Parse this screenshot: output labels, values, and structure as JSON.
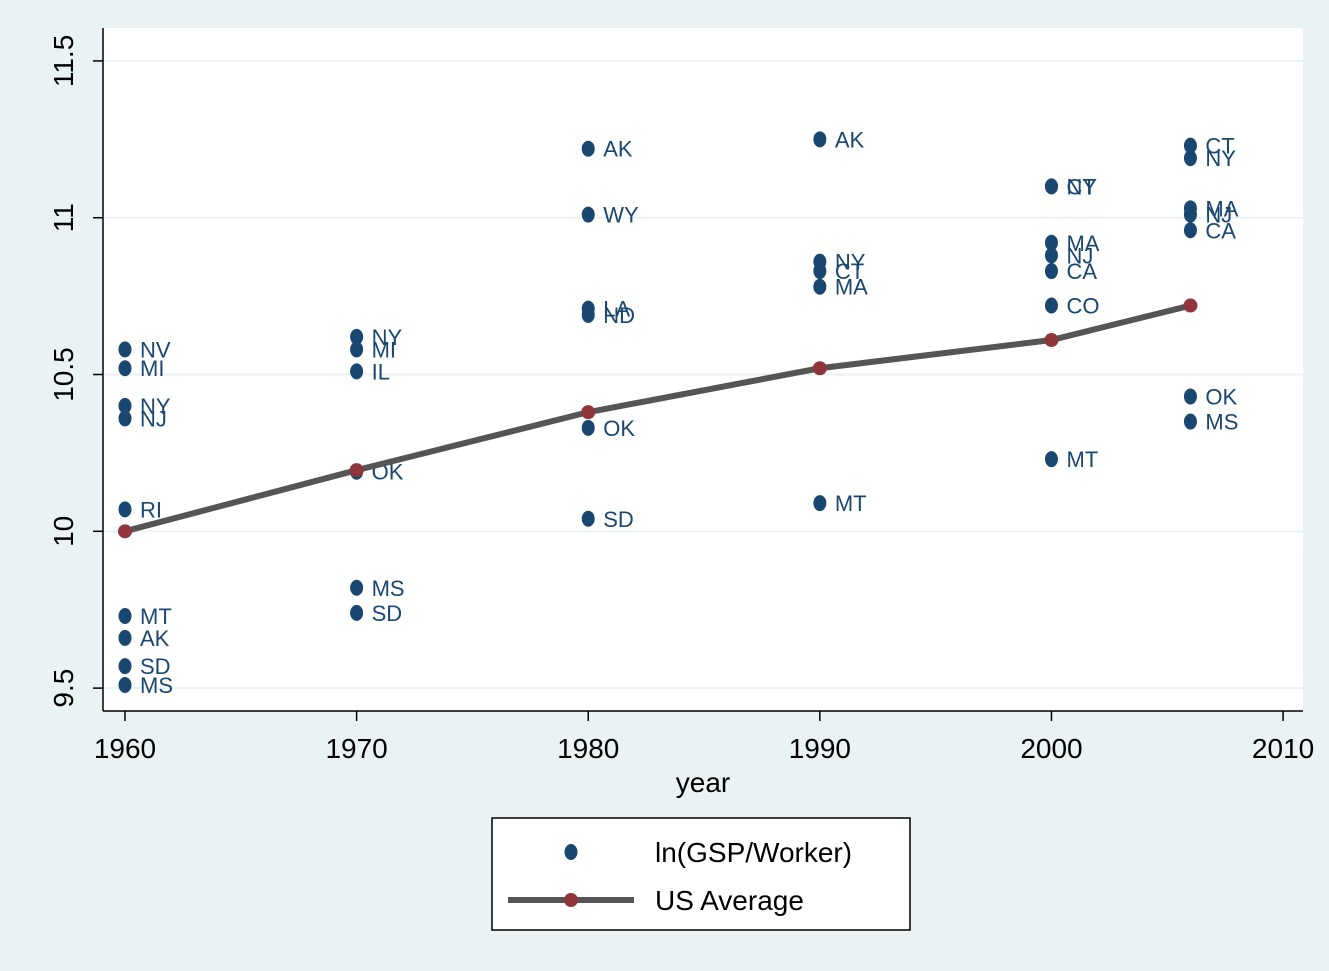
{
  "chart_data": {
    "type": "scatter",
    "x_label": "year",
    "xlim": [
      1959.05,
      2010.86
    ],
    "ylim": [
      9.427,
      11.605
    ],
    "xticks": [
      1960,
      1970,
      1980,
      1990,
      2000,
      2010
    ],
    "yticks": [
      9.5,
      10,
      10.5,
      11,
      11.5
    ],
    "grid": true,
    "legend": "bottom",
    "series": [
      {
        "name": "ln(GSP/Worker)",
        "type": "scatter",
        "color": "#1a476f",
        "x": [
          1960,
          1960,
          1960,
          1960,
          1960,
          1960,
          1960,
          1960,
          1960,
          1970,
          1970,
          1970,
          1970,
          1970,
          1970,
          1980,
          1980,
          1980,
          1980,
          1980,
          1980,
          1990,
          1990,
          1990,
          1990,
          1990,
          2000,
          2000,
          2000,
          2000,
          2000,
          2000,
          2000,
          2006,
          2006,
          2006,
          2006,
          2006,
          2006,
          2006
        ],
        "values": [
          10.58,
          10.52,
          10.4,
          10.36,
          10.07,
          9.73,
          9.66,
          9.57,
          9.51,
          10.62,
          10.58,
          10.51,
          10.19,
          9.82,
          9.74,
          11.22,
          11.01,
          10.71,
          10.69,
          10.33,
          10.04,
          11.25,
          10.86,
          10.83,
          10.78,
          10.09,
          11.1,
          11.1,
          10.92,
          10.88,
          10.83,
          10.72,
          10.23,
          11.23,
          11.19,
          11.03,
          11.01,
          10.96,
          10.43,
          10.35
        ],
        "labels": [
          "NV",
          "MI",
          "NY",
          "NJ",
          "RI",
          "MT",
          "AK",
          "SD",
          "MS",
          "NY",
          "MI",
          "IL",
          "OK",
          "MS",
          "SD",
          "AK",
          "WY",
          "LA",
          "ND",
          "OK",
          "SD",
          "AK",
          "NY",
          "CT",
          "MA",
          "MT",
          "CT",
          "NY",
          "MA",
          "NJ",
          "CA",
          "CO",
          "MT",
          "CT",
          "NY",
          "MA",
          "NJ",
          "CA",
          "OK",
          "MS"
        ]
      },
      {
        "name": "US Average",
        "type": "line",
        "color": "#555555",
        "marker_color": "#90353b",
        "x": [
          1960,
          1970,
          1980,
          1990,
          2000,
          2006
        ],
        "values": [
          10.0,
          10.195,
          10.38,
          10.52,
          10.61,
          10.72
        ]
      }
    ]
  }
}
